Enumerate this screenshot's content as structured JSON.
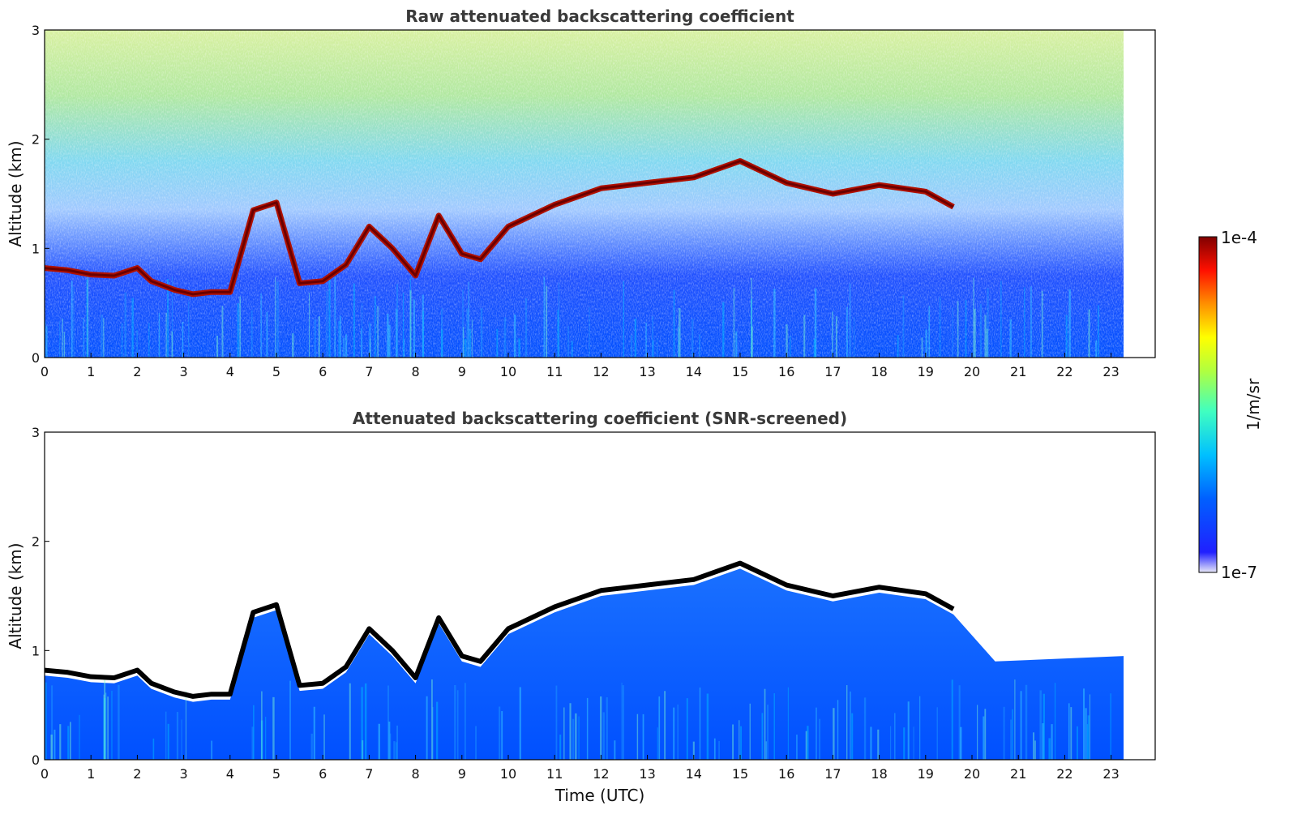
{
  "chart_data": [
    {
      "type": "heatmap",
      "title": "Raw attenuated backscattering coefficient",
      "xlabel": "",
      "ylabel": "Altitude (km)",
      "xlim": [
        0,
        24
      ],
      "ylim": [
        0,
        3
      ],
      "x_ticks": [
        "0",
        "1",
        "2",
        "3",
        "4",
        "5",
        "6",
        "7",
        "8",
        "9",
        "10",
        "11",
        "12",
        "13",
        "14",
        "15",
        "16",
        "17",
        "18",
        "19",
        "20",
        "21",
        "22",
        "23"
      ],
      "y_ticks": [
        "0",
        "1",
        "2",
        "3"
      ],
      "data_end_time": 23.3,
      "screened": false,
      "layer_altitude_km": {
        "time": [
          0,
          0.5,
          1,
          1.5,
          2,
          2.3,
          2.8,
          3.2,
          3.6,
          4.0,
          4.5,
          5.0,
          5.5,
          6.0,
          6.5,
          7.0,
          7.5,
          8.0,
          8.5,
          9.0,
          9.4,
          10,
          11,
          12,
          13,
          14,
          15,
          16,
          17,
          18,
          19,
          19.6
        ],
        "altitude": [
          0.82,
          0.8,
          0.76,
          0.75,
          0.82,
          0.7,
          0.62,
          0.58,
          0.6,
          0.6,
          1.35,
          1.42,
          0.68,
          0.7,
          0.85,
          1.2,
          1.0,
          0.75,
          1.3,
          0.95,
          0.9,
          1.2,
          1.4,
          1.55,
          1.6,
          1.65,
          1.8,
          1.6,
          1.5,
          1.58,
          1.52,
          1.38
        ]
      }
    },
    {
      "type": "heatmap",
      "title": "Attenuated backscattering coefficient (SNR-screened)",
      "xlabel": "Time (UTC)",
      "ylabel": "Altitude (km)",
      "xlim": [
        0,
        24
      ],
      "ylim": [
        0,
        3
      ],
      "x_ticks": [
        "0",
        "1",
        "2",
        "3",
        "4",
        "5",
        "6",
        "7",
        "8",
        "9",
        "10",
        "11",
        "12",
        "13",
        "14",
        "15",
        "16",
        "17",
        "18",
        "19",
        "20",
        "21",
        "22",
        "23"
      ],
      "y_ticks": [
        "0",
        "1",
        "2",
        "3"
      ],
      "data_end_time": 23.3,
      "screened": true
    }
  ],
  "colorbar": {
    "label": "1/m/sr",
    "max_label": "1e-4",
    "min_label": "1e-7",
    "colormap": "jet",
    "colors": [
      "#e8e8f8",
      "#0000ff",
      "#0080ff",
      "#00ffff",
      "#80ff80",
      "#ffff00",
      "#ff8000",
      "#ff0000",
      "#800000"
    ]
  }
}
